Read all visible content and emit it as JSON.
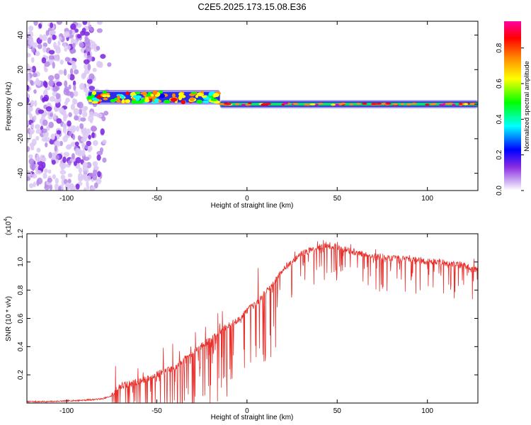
{
  "page_title": "C2E5.2025.173.15.08.E36",
  "colors": {
    "snr_line": "#e8302c",
    "axis": "#000000",
    "background": "#ffffff"
  },
  "chart_data": [
    {
      "type": "heatmap",
      "title": "C2E5.2025.173.15.08.E36",
      "xlabel": "Height of straight line (km)",
      "ylabel": "Frequency (Hz)",
      "xlim": [
        -122,
        128
      ],
      "ylim": [
        -50,
        48
      ],
      "xticks": [
        -100,
        -50,
        0,
        50,
        100
      ],
      "yticks": [
        -40,
        -20,
        0,
        20,
        40
      ],
      "colorbar": {
        "label": "Normalized spectral amplitude",
        "range": [
          0,
          0.95
        ],
        "ticks": [
          "0.0",
          "0.2",
          "0.4",
          "0.6",
          "0.8"
        ],
        "colormap": [
          "#ffffff",
          "#8a2be2",
          "#0000ff",
          "#00ffff",
          "#00ff00",
          "#ffff00",
          "#ff8c00",
          "#ff0000",
          "#ff00a0"
        ]
      },
      "regions": [
        {
          "x_range": [
            -122,
            -78
          ],
          "freq_range": [
            -50,
            48
          ],
          "amplitude": "0.0-0.4",
          "description_level": "noise"
        },
        {
          "x_range": [
            -88,
            -15
          ],
          "freq_center": 4,
          "freq_halfwidth": 3,
          "amplitude": "0.2-0.8"
        },
        {
          "x_range": [
            -15,
            128
          ],
          "freq_center": 0,
          "freq_halfwidth": 1.5,
          "amplitude": "0.3-0.95"
        }
      ]
    },
    {
      "type": "line",
      "xlabel": "Height of straight line (km)",
      "ylabel": "SNR (10 * v/v)",
      "ylabel_multiplier": "(x10",
      "ylabel_exponent": "4",
      "ylabel_multiplier_close": ")",
      "xlim": [
        -122,
        128
      ],
      "ylim": [
        0,
        1.2
      ],
      "xticks": [
        -100,
        -50,
        0,
        50,
        100
      ],
      "yticks": [
        "0.2",
        "0.4",
        "0.6",
        "0.8",
        "1.0",
        "1.2"
      ],
      "series": [
        {
          "color": "#e8302c",
          "x": [
            -122,
            -110,
            -100,
            -90,
            -80,
            -75,
            -72,
            -70,
            -65,
            -60,
            -55,
            -50,
            -45,
            -40,
            -35,
            -30,
            -25,
            -20,
            -15,
            -10,
            -5,
            0,
            5,
            10,
            15,
            20,
            25,
            30,
            35,
            40,
            45,
            50,
            55,
            60,
            65,
            70,
            75,
            80,
            85,
            90,
            95,
            100,
            105,
            110,
            115,
            120,
            125,
            128
          ],
          "y": [
            0.01,
            0.01,
            0.015,
            0.02,
            0.03,
            0.05,
            0.1,
            0.12,
            0.13,
            0.15,
            0.17,
            0.2,
            0.22,
            0.25,
            0.3,
            0.35,
            0.4,
            0.45,
            0.5,
            0.55,
            0.58,
            0.65,
            0.7,
            0.78,
            0.85,
            0.95,
            1.0,
            1.05,
            1.08,
            1.1,
            1.12,
            1.1,
            1.08,
            1.06,
            1.05,
            1.04,
            1.03,
            1.02,
            1.02,
            1.02,
            1.01,
            1.0,
            1.0,
            0.99,
            0.98,
            0.97,
            0.95,
            0.94
          ]
        }
      ]
    }
  ]
}
